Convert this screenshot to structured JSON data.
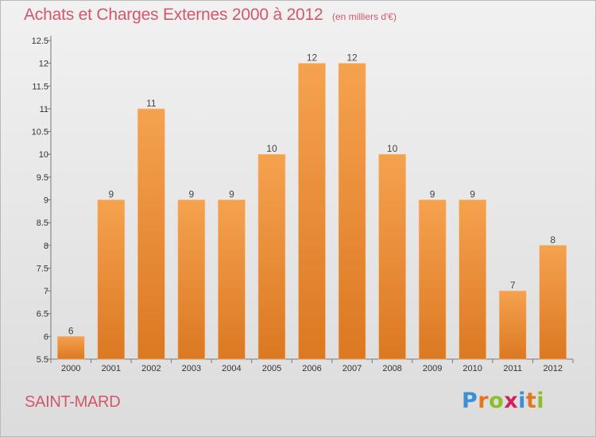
{
  "header": {
    "title": "Achats et Charges Externes 2000 à 2012",
    "subtitle": "(en milliers d'€)"
  },
  "footer": {
    "commune": "SAINT-MARD",
    "logo_letters": [
      "P",
      "r",
      "o",
      "x",
      "i",
      "t",
      "i"
    ]
  },
  "colors": {
    "text_accent": "#d2576b",
    "bar_light": "#f5a24f",
    "bar_dark": "#dc7822",
    "logo_letters": [
      "#3a8fd6",
      "#e2771f",
      "#8dbf2a",
      "#d2235c",
      "#3a8fd6",
      "#e2771f",
      "#8dbf2a"
    ]
  },
  "chart_data": {
    "type": "bar",
    "title": "Achats et Charges Externes 2000 à 2012",
    "subtitle": "(en milliers d'€)",
    "categories": [
      "2000",
      "2001",
      "2002",
      "2003",
      "2004",
      "2005",
      "2006",
      "2007",
      "2008",
      "2009",
      "2010",
      "2011",
      "2012"
    ],
    "values": [
      6,
      9,
      11,
      9,
      9,
      10,
      12,
      12,
      10,
      9,
      9,
      7,
      8
    ],
    "data_labels": [
      "6",
      "9",
      "11",
      "9",
      "9",
      "10",
      "12",
      "12",
      "10",
      "9",
      "9",
      "7",
      "8"
    ],
    "ylim": [
      5.5,
      12.5
    ],
    "yticks": [
      5.5,
      6,
      6.5,
      7,
      7.5,
      8,
      8.5,
      9,
      9.5,
      10,
      10.5,
      11,
      11.5,
      12,
      12.5
    ],
    "ytick_labels": [
      "5.5",
      "6",
      "6.5",
      "7",
      "7.5",
      "8",
      "8.5",
      "9",
      "9.5",
      "10",
      "10.5",
      "11",
      "11.5",
      "12",
      "12.5"
    ],
    "grid": false,
    "legend": "none"
  }
}
